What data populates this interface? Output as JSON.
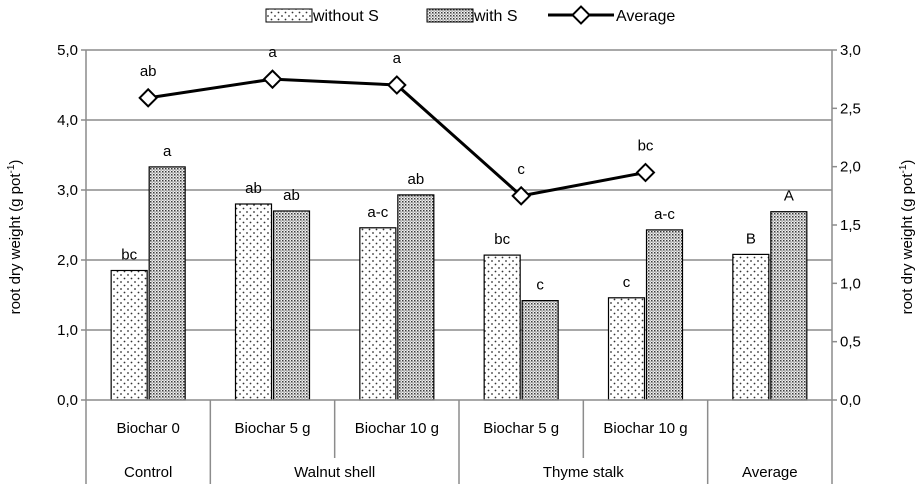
{
  "chart_data": {
    "type": "bar",
    "title": "",
    "ylabel": "root dry weight (g pot",
    "ylabel_sup": "-1",
    "ylabel_close": ")",
    "y2label": "root dry weight (g pot",
    "y2label_sup": "-1",
    "y2label_close": ")",
    "ylim": [
      0,
      5
    ],
    "y2lim": [
      0,
      3
    ],
    "yticks": [
      "0,0",
      "1,0",
      "2,0",
      "3,0",
      "4,0",
      "5,0"
    ],
    "y2ticks": [
      "0,0",
      "0,5",
      "1,0",
      "1,5",
      "2,0",
      "2,5",
      "3,0"
    ],
    "grid": true,
    "legend_position": "top",
    "categories": [
      "Biochar 0",
      "Biochar 5 g",
      "Biochar 10 g",
      "Biochar 5 g",
      "Biochar 10 g",
      ""
    ],
    "groups": [
      {
        "label": "Control",
        "span": 1
      },
      {
        "label": "Walnut shell",
        "span": 2
      },
      {
        "label": "Thyme stalk",
        "span": 2
      },
      {
        "label": "Average",
        "span": 1
      }
    ],
    "series": [
      {
        "name": "without S",
        "axis": "left",
        "values": [
          1.85,
          2.8,
          2.46,
          2.07,
          1.46,
          2.08
        ],
        "labels": [
          "bc",
          "ab",
          "a-c",
          "bc",
          "c",
          "B"
        ]
      },
      {
        "name": "with S",
        "axis": "left",
        "values": [
          3.33,
          2.7,
          2.93,
          1.42,
          2.43,
          2.69
        ],
        "labels": [
          "a",
          "ab",
          "ab",
          "c",
          "a-c",
          "A"
        ]
      },
      {
        "name": "Average",
        "axis": "right",
        "type": "line",
        "values": [
          2.59,
          2.75,
          2.7,
          1.75,
          1.95,
          null
        ],
        "labels": [
          "ab",
          "a",
          "a",
          "c",
          "bc",
          null
        ]
      }
    ]
  }
}
